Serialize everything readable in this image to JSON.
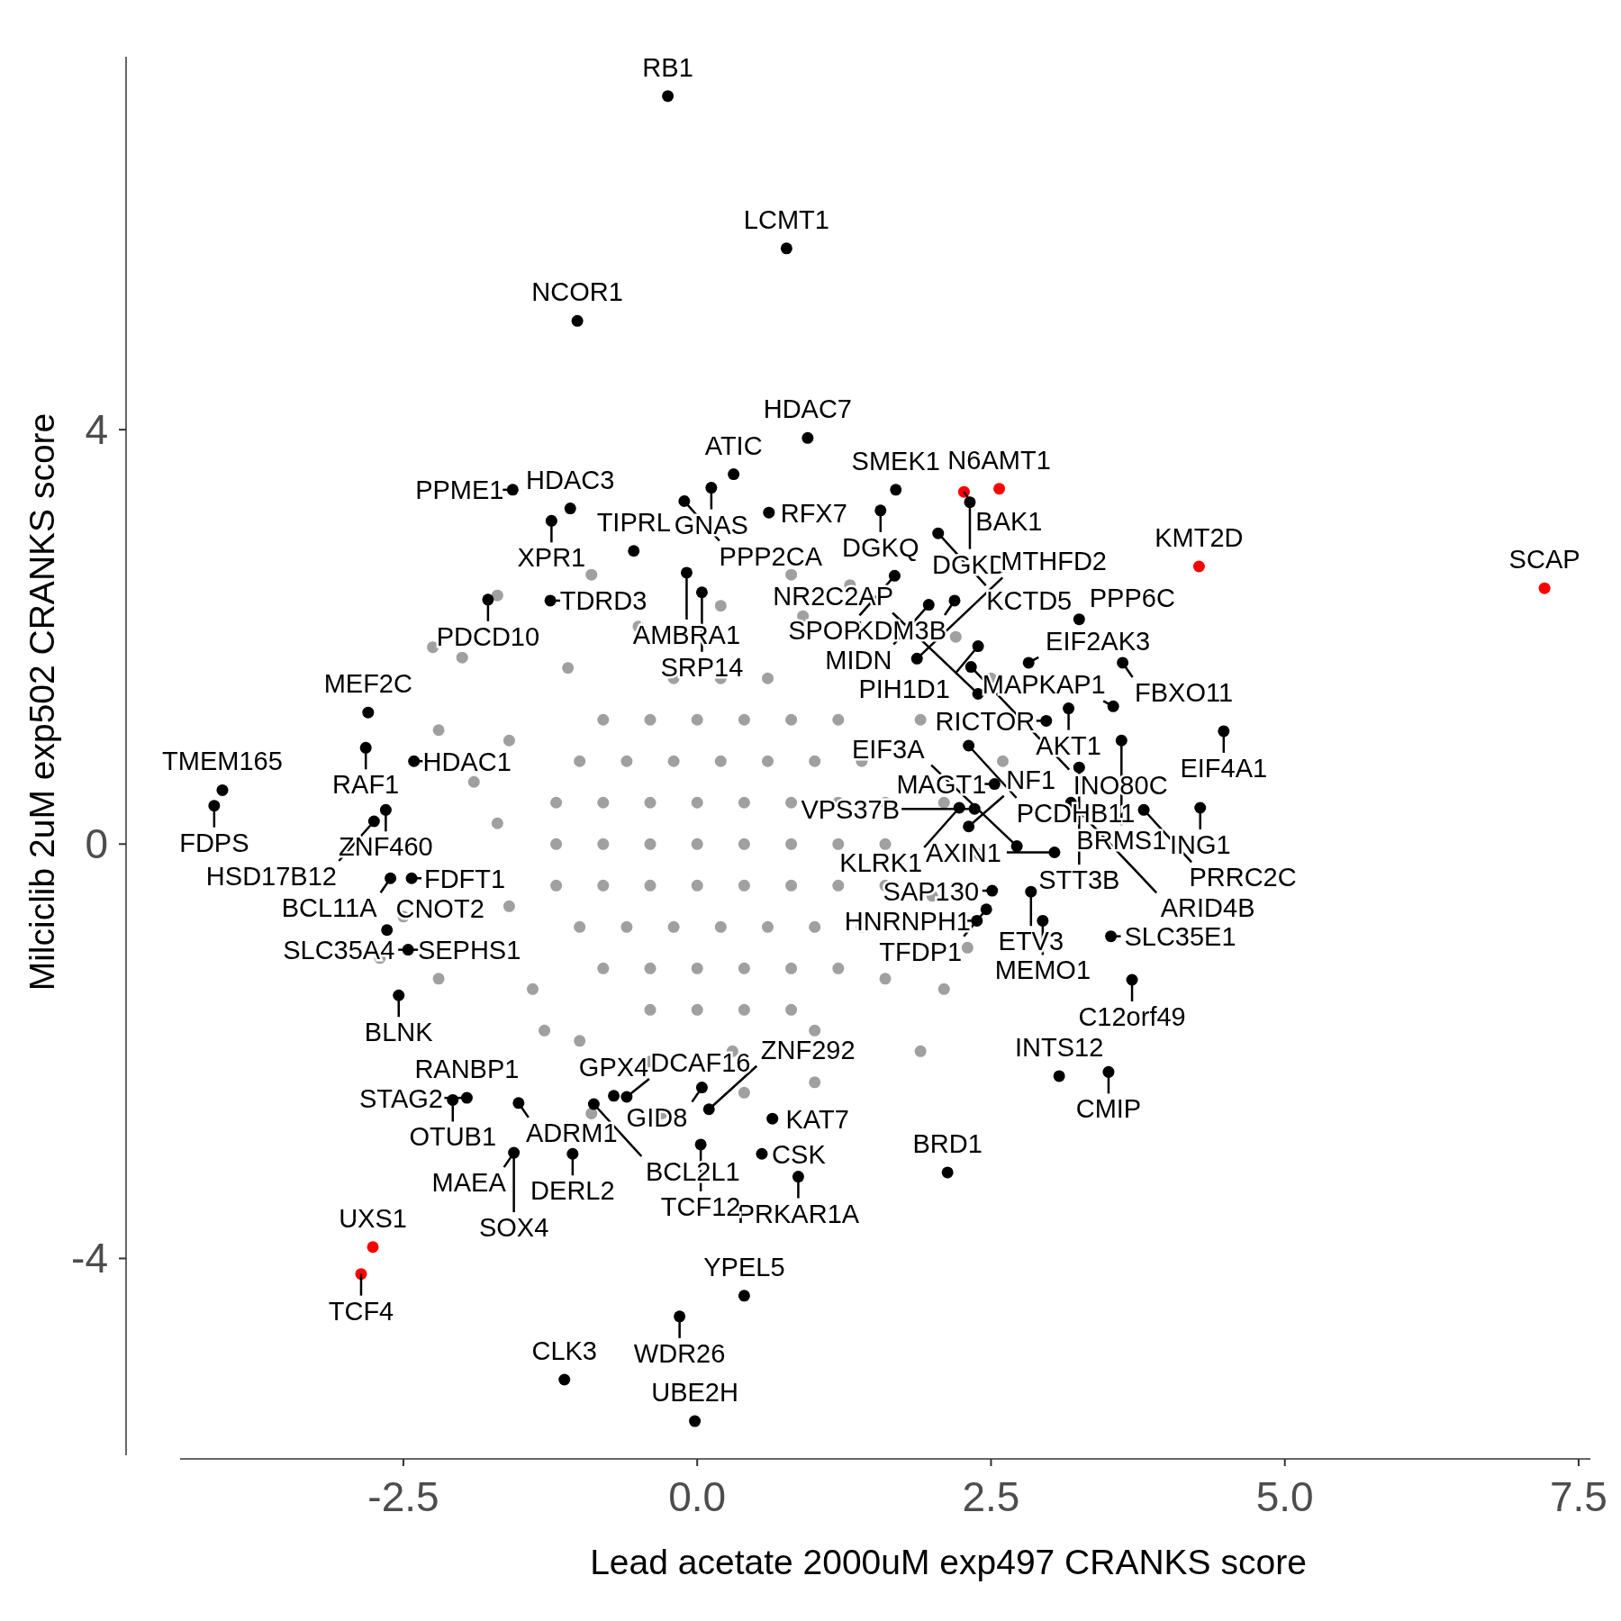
{
  "chart_data": {
    "type": "scatter",
    "xlabel": "Lead acetate 2000uM exp497 CRANKS score",
    "ylabel": "Milciclib 2uM exp502 CRANKS score",
    "xlim": [
      -4.4,
      7.6
    ],
    "ylim": [
      -5.9,
      7.6
    ],
    "xticks": [
      {
        "value": -2.5,
        "label": "-2.5"
      },
      {
        "value": 0,
        "label": "0.0"
      },
      {
        "value": 2.5,
        "label": "2.5"
      },
      {
        "value": 5,
        "label": "5.0"
      },
      {
        "value": 7.5,
        "label": "7.5"
      }
    ],
    "yticks": [
      -4,
      0,
      4
    ],
    "grid": false,
    "marker": "circle",
    "series": [
      {
        "color": "#a0a0a0",
        "x": [
          -0.2,
          0.2,
          0.6,
          -0.8,
          -0.4,
          0,
          0.4,
          0.8,
          1.2,
          -1.0,
          -0.6,
          -0.2,
          0.2,
          0.6,
          1.0,
          1.4,
          -1.2,
          -0.8,
          -0.4,
          0,
          0.4,
          0.8,
          1.2,
          1.6,
          -1.2,
          -0.8,
          -0.4,
          0,
          0.4,
          0.8,
          1.2,
          1.6,
          -1.2,
          -0.8,
          -0.4,
          0,
          0.4,
          0.8,
          1.2,
          1.6,
          -1.0,
          -0.6,
          -0.2,
          0.2,
          0.6,
          1.0,
          1.4,
          -0.8,
          -0.4,
          0,
          0.4,
          0.8,
          1.2,
          -0.4,
          0,
          0.4,
          0.8,
          -1.6,
          -1.7,
          -1.6,
          -1.4,
          -1.0,
          -0.4,
          0.3,
          1.0,
          1.6,
          2.0,
          2.1,
          1.9,
          0.9,
          0.2,
          -0.5,
          -1.1,
          -2.2,
          -2.7,
          -2.2,
          -2.0,
          -2.25,
          -1.7,
          -0.9,
          -0.3,
          0.4,
          1.0,
          1.9,
          2.3,
          2.4,
          2.6,
          2.5,
          2.2,
          1.3,
          -1.3,
          -2.5,
          0.8,
          -0.9,
          2.1,
          -1.9
        ],
        "values": [
          1.6,
          1.6,
          1.6,
          1.2,
          1.2,
          1.2,
          1.2,
          1.2,
          1.2,
          0.8,
          0.8,
          0.8,
          0.8,
          0.8,
          0.8,
          0.8,
          0.4,
          0.4,
          0.4,
          0.4,
          0.4,
          0.4,
          0.4,
          0.4,
          0,
          0,
          0,
          0,
          0,
          0,
          0,
          0,
          -0.4,
          -0.4,
          -0.4,
          -0.4,
          -0.4,
          -0.4,
          -0.4,
          -0.4,
          -0.8,
          -0.8,
          -0.8,
          -0.8,
          -0.8,
          -0.8,
          -0.8,
          -1.2,
          -1.2,
          -1.2,
          -1.2,
          -1.2,
          -1.2,
          -1.6,
          -1.6,
          -1.6,
          -1.6,
          1.0,
          0.2,
          -0.6,
          -1.4,
          -1.9,
          -2.1,
          -2.0,
          -1.8,
          -1.3,
          -0.5,
          0.4,
          1.2,
          2.2,
          2.3,
          2.1,
          1.7,
          1.1,
          -1.1,
          -1.3,
          1.8,
          1.9,
          2.4,
          -2.6,
          -2.6,
          -2.4,
          -2.3,
          -2.0,
          -1.0,
          -0.1,
          0.8,
          1.6,
          2.0,
          2.5,
          -1.8,
          -0.7,
          2.6,
          2.6,
          -1.4,
          0.6
        ]
      },
      {
        "color": "#000000",
        "x": [
          -0.25,
          0.76,
          -1.02,
          0.94,
          0.12,
          0.31,
          0.61,
          1.69,
          1.56,
          2.32,
          2.05,
          2.82,
          2.19,
          3.25,
          3.62,
          3.54,
          4.48,
          2.97,
          3.16,
          3.61,
          3.25,
          4.28,
          3.8,
          3.04,
          3.18,
          2.84,
          3.52,
          3.7,
          3.5,
          3.08,
          2.13,
          2.94,
          2.51,
          2.46,
          2.38,
          2.72,
          2.31,
          2.36,
          2.39,
          2.39,
          1.97,
          1.87,
          1.68,
          2.33,
          2.53,
          2.23,
          -1.08,
          -0.11,
          -0.54,
          -1.24,
          -1.57,
          -1.78,
          -1.25,
          -0.09,
          0.04,
          -2.8,
          -4.04,
          -2.41,
          -2.82,
          -2.65,
          -4.11,
          -2.75,
          -2.61,
          -2.43,
          -2.46,
          -2.64,
          -2.54,
          -1.96,
          -2.08,
          -1.52,
          -1.56,
          -1.06,
          -0.71,
          -0.6,
          -0.88,
          0.04,
          0.1,
          0.03,
          0.55,
          0.64,
          0.86,
          0.4,
          -0.15,
          -1.13,
          -0.02,
          2.31
        ],
        "values": [
          7.22,
          5.75,
          5.05,
          3.92,
          3.44,
          3.57,
          3.2,
          3.42,
          3.22,
          3.3,
          3.0,
          1.75,
          2.35,
          2.17,
          1.75,
          1.33,
          1.09,
          1.19,
          1.31,
          1.0,
          0.74,
          0.35,
          0.33,
          -0.08,
          0.4,
          -0.46,
          -0.89,
          -1.31,
          -2.2,
          -2.24,
          -3.17,
          -0.74,
          -0.45,
          -0.63,
          -0.74,
          -0.02,
          0.17,
          0.34,
          1.91,
          1.45,
          2.31,
          1.79,
          2.59,
          1.71,
          0.58,
          0.35,
          3.24,
          3.31,
          2.83,
          3.12,
          3.42,
          2.36,
          2.35,
          2.62,
          2.43,
          1.27,
          0.52,
          0.8,
          0.93,
          0.33,
          0.37,
          0.22,
          -0.33,
          -0.33,
          -1.02,
          -0.83,
          -1.46,
          -2.45,
          -2.47,
          -2.5,
          -2.98,
          -2.99,
          -2.43,
          -2.44,
          -2.51,
          -2.35,
          -2.56,
          -2.9,
          -2.99,
          -2.65,
          -3.21,
          -4.36,
          -4.56,
          -5.17,
          -5.57,
          0.95
        ]
      },
      {
        "color": "#ff0000",
        "x": [
          2.27,
          2.57,
          4.27,
          7.21,
          -2.76,
          -2.86
        ],
        "values": [
          3.4,
          3.43,
          2.68,
          2.47,
          -3.89,
          -4.15
        ]
      }
    ],
    "annotations": [
      {
        "text": "MAGT1",
        "x": 2.53,
        "y": 0.58
      },
      {
        "text": "RB1",
        "x": -0.25,
        "y": 7.22
      },
      {
        "text": "LCMT1",
        "x": 0.76,
        "y": 5.75
      },
      {
        "text": "NCOR1",
        "x": -1.02,
        "y": 5.05
      },
      {
        "text": "HDAC7",
        "x": 0.94,
        "y": 3.92
      },
      {
        "text": "GNAS",
        "x": 0.12,
        "y": 3.44
      },
      {
        "text": "ATIC",
        "x": 0.31,
        "y": 3.57
      },
      {
        "text": "RFX7",
        "x": 0.61,
        "y": 3.2
      },
      {
        "text": "SMEK1",
        "x": 1.69,
        "y": 3.42
      },
      {
        "text": "DGKQ",
        "x": 1.56,
        "y": 3.22
      },
      {
        "text": "BAK1",
        "x": 2.27,
        "y": 3.4
      },
      {
        "text": "N6AMT1",
        "x": 2.57,
        "y": 3.43
      },
      {
        "text": "DGKD",
        "x": 2.32,
        "y": 3.3
      },
      {
        "text": "KCTD5",
        "x": 2.05,
        "y": 3.0
      },
      {
        "text": "KMT2D",
        "x": 4.27,
        "y": 2.68
      },
      {
        "text": "SCAP",
        "x": 7.21,
        "y": 2.47
      },
      {
        "text": "EIF2AK3",
        "x": 2.82,
        "y": 1.75
      },
      {
        "text": "KDM3B",
        "x": 2.19,
        "y": 2.35
      },
      {
        "text": "PPP6C",
        "x": 3.25,
        "y": 2.17
      },
      {
        "text": "FBXO11",
        "x": 3.62,
        "y": 1.75
      },
      {
        "text": "MAPKAP1",
        "x": 3.54,
        "y": 1.33
      },
      {
        "text": "EIF4A1",
        "x": 4.48,
        "y": 1.09
      },
      {
        "text": "RICTOR",
        "x": 2.97,
        "y": 1.19
      },
      {
        "text": "AKT1",
        "x": 3.16,
        "y": 1.31
      },
      {
        "text": "BRMS1",
        "x": 3.61,
        "y": 1.0
      },
      {
        "text": "STT3B",
        "x": 3.25,
        "y": 0.74
      },
      {
        "text": "ING1",
        "x": 4.28,
        "y": 0.35
      },
      {
        "text": "PRRC2C",
        "x": 3.8,
        "y": 0.33
      },
      {
        "text": "AXIN1",
        "x": 3.04,
        "y": -0.08
      },
      {
        "text": "ARID4B",
        "x": 3.18,
        "y": 0.4
      },
      {
        "text": "ETV3",
        "x": 2.84,
        "y": -0.46
      },
      {
        "text": "SLC35E1",
        "x": 3.52,
        "y": -0.89
      },
      {
        "text": "C12orf49",
        "x": 3.7,
        "y": -1.31
      },
      {
        "text": "CMIP",
        "x": 3.5,
        "y": -2.2
      },
      {
        "text": "INTS12",
        "x": 3.08,
        "y": -2.24
      },
      {
        "text": "BRD1",
        "x": 2.13,
        "y": -3.17
      },
      {
        "text": "MEMO1",
        "x": 2.94,
        "y": -0.74
      },
      {
        "text": "SAP130",
        "x": 2.51,
        "y": -0.45
      },
      {
        "text": "TFDP1",
        "x": 2.46,
        "y": -0.63
      },
      {
        "text": "HNRNPH1",
        "x": 2.38,
        "y": -0.74
      },
      {
        "text": "EIF3A",
        "x": 2.72,
        "y": -0.02
      },
      {
        "text": "NF1",
        "x": 2.31,
        "y": 0.17
      },
      {
        "text": "VPS37B",
        "x": 2.36,
        "y": 0.34
      },
      {
        "text": "PIH1D1",
        "x": 2.39,
        "y": 1.91
      },
      {
        "text": "NR2C2AP",
        "x": 2.39,
        "y": 1.45
      },
      {
        "text": "MIDN",
        "x": 1.97,
        "y": 2.31
      },
      {
        "text": "MTHFD2",
        "x": 1.87,
        "y": 1.79
      },
      {
        "text": "SPOP",
        "x": 1.68,
        "y": 2.59
      },
      {
        "text": "INO80C",
        "x": 2.33,
        "y": 1.71
      },
      {
        "text": "KLRK1",
        "x": 2.23,
        "y": 0.35
      },
      {
        "text": "PCDHB11",
        "x": 2.31,
        "y": 0.95
      },
      {
        "text": "HDAC3",
        "x": -1.08,
        "y": 3.24
      },
      {
        "text": "PPP2CA",
        "x": -0.11,
        "y": 3.31
      },
      {
        "text": "TIPRL",
        "x": -0.54,
        "y": 2.83
      },
      {
        "text": "XPR1",
        "x": -1.24,
        "y": 3.12
      },
      {
        "text": "PPME1",
        "x": -1.57,
        "y": 3.42
      },
      {
        "text": "PDCD10",
        "x": -1.78,
        "y": 2.36
      },
      {
        "text": "TDRD3",
        "x": -1.25,
        "y": 2.35
      },
      {
        "text": "AMBRA1",
        "x": -0.09,
        "y": 2.62
      },
      {
        "text": "SRP14",
        "x": 0.04,
        "y": 2.43
      },
      {
        "text": "MEF2C",
        "x": -2.8,
        "y": 1.27
      },
      {
        "text": "TMEM165",
        "x": -4.04,
        "y": 0.52
      },
      {
        "text": "HDAC1",
        "x": -2.41,
        "y": 0.8
      },
      {
        "text": "RAF1",
        "x": -2.82,
        "y": 0.93
      },
      {
        "text": "ZNF460",
        "x": -2.65,
        "y": 0.33
      },
      {
        "text": "HSD17B12",
        "x": -2.75,
        "y": 0.22
      },
      {
        "text": "FDPS",
        "x": -4.11,
        "y": 0.37
      },
      {
        "text": "BCL11A",
        "x": -2.61,
        "y": -0.33
      },
      {
        "text": "FDFT1",
        "x": -2.43,
        "y": -0.33
      },
      {
        "text": "SEPHS1",
        "x": -2.46,
        "y": -1.02
      },
      {
        "text": "CNOT2",
        "x": -2.64,
        "y": -0.83
      },
      {
        "text": "SLC35A4",
        "x": -2.46,
        "y": -1.02
      },
      {
        "text": "BLNK",
        "x": -2.54,
        "y": -1.46
      },
      {
        "text": "RANBP1",
        "x": -1.96,
        "y": -2.45
      },
      {
        "text": "OTUB1",
        "x": -2.08,
        "y": -2.47
      },
      {
        "text": "STAG2",
        "x": -1.96,
        "y": -2.45
      },
      {
        "text": "ADRM1",
        "x": -1.52,
        "y": -2.5
      },
      {
        "text": "DERL2",
        "x": -1.06,
        "y": -2.99
      },
      {
        "text": "MAEA",
        "x": -1.56,
        "y": -2.98
      },
      {
        "text": "SOX4",
        "x": -1.56,
        "y": -2.98
      },
      {
        "text": "GPX4",
        "x": -0.71,
        "y": -2.43
      },
      {
        "text": "DCAF16",
        "x": -0.6,
        "y": -2.44
      },
      {
        "text": "BCL2L1",
        "x": -0.88,
        "y": -2.51
      },
      {
        "text": "GID8",
        "x": 0.04,
        "y": -2.35
      },
      {
        "text": "ZNF292",
        "x": 0.1,
        "y": -2.56
      },
      {
        "text": "CSK",
        "x": 0.55,
        "y": -2.99
      },
      {
        "text": "KAT7",
        "x": 0.64,
        "y": -2.65
      },
      {
        "text": "PRKAR1A",
        "x": 0.86,
        "y": -3.21
      },
      {
        "text": "TCF12",
        "x": 0.03,
        "y": -2.9
      },
      {
        "text": "YPEL5",
        "x": 0.4,
        "y": -4.36
      },
      {
        "text": "WDR26",
        "x": -0.15,
        "y": -4.56
      },
      {
        "text": "CLK3",
        "x": -1.13,
        "y": -5.17
      },
      {
        "text": "UBE2H",
        "x": -0.02,
        "y": -5.57
      },
      {
        "text": "UXS1",
        "x": -2.76,
        "y": -3.89
      },
      {
        "text": "TCF4",
        "x": -2.86,
        "y": -4.15
      }
    ]
  }
}
